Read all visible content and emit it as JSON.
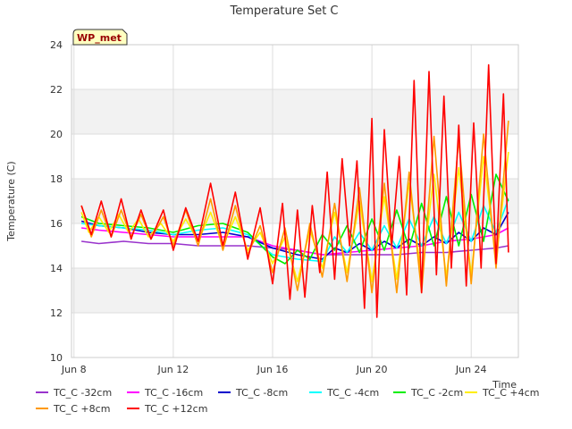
{
  "chart_data": {
    "type": "line",
    "title": "Temperature Set C",
    "xlabel": "Time",
    "ylabel": "Temperature (C)",
    "badge": "WP_met",
    "xlim": [
      7.9,
      25.9
    ],
    "ylim": [
      10,
      24
    ],
    "x_ticks": [
      {
        "x": 8,
        "label": "Jun 8"
      },
      {
        "x": 12,
        "label": "Jun 12"
      },
      {
        "x": 16,
        "label": "Jun 16"
      },
      {
        "x": 20,
        "label": "Jun 20"
      },
      {
        "x": 24,
        "label": "Jun 24"
      }
    ],
    "y_ticks": [
      10,
      12,
      14,
      16,
      18,
      20,
      22,
      24
    ],
    "grid": true,
    "band_fill": "#f2f2f2",
    "legend_placement": "bottom",
    "x_unit_note": "day of June",
    "series": [
      {
        "name": "TC_C -32cm",
        "color": "#9933cc",
        "x": [
          8.3,
          9,
          10,
          11,
          12,
          13,
          14,
          15,
          16,
          17,
          18,
          19,
          20,
          21,
          22,
          23,
          24,
          25,
          25.5
        ],
        "y": [
          15.2,
          15.1,
          15.2,
          15.1,
          15.1,
          15.0,
          15.0,
          15.0,
          14.9,
          14.8,
          14.6,
          14.6,
          14.6,
          14.6,
          14.7,
          14.7,
          14.8,
          14.9,
          15.0
        ]
      },
      {
        "name": "TC_C -16cm",
        "color": "#ff00ff",
        "x": [
          8.3,
          9,
          10,
          11,
          12,
          13,
          14,
          15,
          16,
          17,
          18,
          19,
          20,
          21,
          22,
          23,
          24,
          25,
          25.5
        ],
        "y": [
          15.8,
          15.7,
          15.6,
          15.5,
          15.4,
          15.4,
          15.4,
          15.4,
          15.0,
          14.8,
          14.6,
          14.7,
          14.8,
          14.9,
          15.0,
          15.2,
          15.3,
          15.5,
          15.8
        ]
      },
      {
        "name": "TC_C -8cm",
        "color": "#0000cc",
        "x": [
          8.3,
          9,
          10,
          11,
          12,
          13,
          14,
          15,
          16,
          17,
          18,
          18.5,
          19,
          19.5,
          20,
          20.5,
          21,
          21.5,
          22,
          22.5,
          23,
          23.5,
          24,
          24.5,
          25,
          25.5
        ],
        "y": [
          16.1,
          15.9,
          15.8,
          15.6,
          15.5,
          15.5,
          15.6,
          15.4,
          14.9,
          14.6,
          14.4,
          14.9,
          14.7,
          15.1,
          14.8,
          15.2,
          14.9,
          15.3,
          15.0,
          15.4,
          15.1,
          15.6,
          15.2,
          15.8,
          15.5,
          16.5
        ]
      },
      {
        "name": "TC_C -4cm",
        "color": "#00ffff",
        "x": [
          8.3,
          9,
          10,
          11,
          12,
          13,
          14,
          15,
          16,
          17,
          18,
          18.5,
          19,
          19.5,
          20,
          20.5,
          21,
          21.5,
          22,
          22.5,
          23,
          23.5,
          24,
          24.5,
          25,
          25.5
        ],
        "y": [
          16.0,
          15.9,
          15.8,
          15.7,
          15.5,
          15.7,
          15.8,
          15.5,
          14.6,
          14.4,
          14.3,
          15.4,
          14.7,
          15.6,
          14.8,
          15.9,
          14.9,
          16.2,
          15.0,
          16.3,
          15.1,
          16.5,
          15.2,
          16.8,
          15.6,
          17.1
        ]
      },
      {
        "name": "TC_C -2cm",
        "color": "#00ee00",
        "x": [
          8.3,
          9,
          10,
          11,
          12,
          13,
          14,
          15,
          16,
          16.5,
          17,
          17.5,
          18,
          18.5,
          19,
          19.5,
          20,
          20.5,
          21,
          21.5,
          22,
          22.5,
          23,
          23.5,
          24,
          24.5,
          25,
          25.5
        ],
        "y": [
          16.3,
          16.0,
          15.9,
          15.8,
          15.6,
          15.9,
          16.0,
          15.6,
          14.5,
          14.2,
          14.8,
          14.4,
          15.5,
          14.8,
          15.9,
          14.7,
          16.2,
          14.8,
          16.6,
          14.9,
          16.9,
          15.0,
          17.2,
          15.0,
          17.3,
          15.2,
          18.2,
          17.0
        ]
      },
      {
        "name": "TC_C +4cm",
        "color": "#ffee00",
        "x": [
          8.3,
          8.6,
          9,
          9.4,
          9.8,
          10.2,
          10.6,
          11,
          11.5,
          12,
          12.5,
          13,
          13.5,
          14,
          14.5,
          15,
          15.5,
          16,
          16.5,
          17,
          17.5,
          18,
          18.5,
          19,
          19.5,
          20,
          20.5,
          21,
          21.5,
          22,
          22.5,
          23,
          23.5,
          24,
          24.5,
          25,
          25.5
        ],
        "y": [
          16.5,
          15.6,
          16.3,
          15.6,
          16.4,
          15.6,
          16.2,
          15.4,
          16.0,
          15.2,
          16.2,
          15.2,
          16.5,
          15.0,
          16.3,
          14.8,
          15.6,
          14.2,
          15.4,
          13.4,
          15.7,
          14.0,
          16.5,
          13.8,
          17.0,
          13.4,
          17.2,
          13.5,
          17.8,
          13.6,
          18.2,
          13.6,
          18.5,
          13.7,
          19.0,
          14.4,
          19.2
        ]
      },
      {
        "name": "TC_C +8cm",
        "color": "#ff9900",
        "x": [
          8.3,
          8.7,
          9.1,
          9.5,
          9.9,
          10.3,
          10.7,
          11.1,
          11.6,
          12,
          12.5,
          13,
          13.5,
          14,
          14.5,
          15,
          15.5,
          16,
          16.5,
          17,
          17.5,
          18,
          18.5,
          19,
          19.5,
          20,
          20.5,
          21,
          21.5,
          22,
          22.5,
          23,
          23.5,
          24,
          24.5,
          25,
          25.5
        ],
        "y": [
          16.8,
          15.4,
          16.6,
          15.4,
          16.6,
          15.4,
          16.4,
          15.3,
          16.3,
          15.0,
          16.6,
          15.0,
          17.1,
          14.8,
          16.8,
          14.6,
          15.9,
          13.8,
          15.8,
          13.0,
          16.0,
          13.6,
          16.9,
          13.4,
          17.6,
          12.9,
          17.8,
          12.9,
          18.3,
          12.9,
          19.9,
          13.2,
          19.8,
          13.3,
          20.0,
          14.0,
          20.6
        ]
      },
      {
        "name": "TC_C +12cm",
        "color": "#ff0000",
        "x": [
          8.3,
          8.7,
          9.1,
          9.5,
          9.9,
          10.3,
          10.7,
          11.1,
          11.6,
          12,
          12.5,
          13,
          13.5,
          14,
          14.5,
          15,
          15.5,
          16,
          16.4,
          16.7,
          17,
          17.3,
          17.6,
          17.9,
          18.2,
          18.5,
          18.8,
          19.1,
          19.4,
          19.7,
          20,
          20.2,
          20.5,
          20.8,
          21.1,
          21.4,
          21.7,
          22,
          22.3,
          22.6,
          22.9,
          23.2,
          23.5,
          23.8,
          24.1,
          24.4,
          24.7,
          25,
          25.3,
          25.5
        ],
        "y": [
          16.8,
          15.5,
          17.0,
          15.4,
          17.1,
          15.3,
          16.6,
          15.3,
          16.6,
          14.8,
          16.7,
          15.2,
          17.8,
          15.0,
          17.4,
          14.4,
          16.7,
          13.3,
          16.9,
          12.6,
          16.6,
          12.7,
          16.8,
          13.8,
          18.3,
          13.5,
          18.9,
          15.0,
          18.8,
          12.2,
          20.7,
          11.8,
          20.2,
          15.0,
          19.0,
          12.8,
          22.4,
          12.9,
          22.8,
          13.7,
          21.7,
          14.0,
          20.4,
          13.2,
          20.5,
          14.0,
          23.1,
          14.2,
          21.8,
          14.7
        ]
      }
    ]
  }
}
